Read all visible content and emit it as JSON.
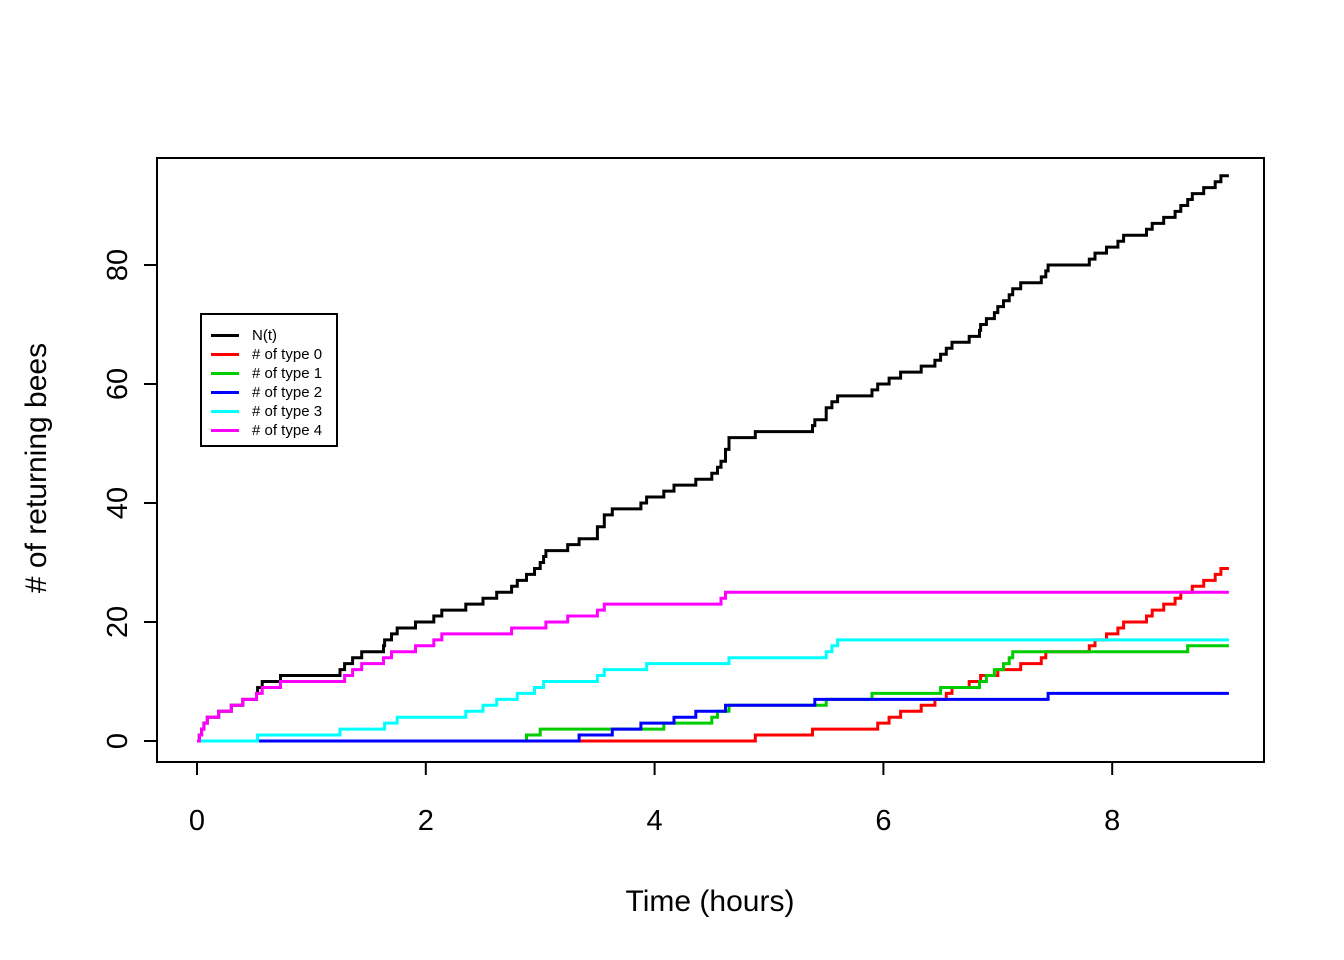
{
  "figure": {
    "xlabel": "Time (hours)",
    "ylabel": "# of returning bees"
  },
  "legend": {
    "items": [
      {
        "label": "N(t)",
        "color": "#000000"
      },
      {
        "label": "# of type 0",
        "color": "#FF0000"
      },
      {
        "label": "# of type 1",
        "color": "#00CD00"
      },
      {
        "label": "# of type 2",
        "color": "#0000FF"
      },
      {
        "label": "# of type 3",
        "color": "#00FFFF"
      },
      {
        "label": "# of type 4",
        "color": "#FF00FF"
      }
    ]
  },
  "chart_data": {
    "type": "line",
    "subtype": "step-counting-process",
    "title": "",
    "xlabel": "Time (hours)",
    "ylabel": "# of returning bees",
    "xlim": [
      -0.36,
      9.36
    ],
    "ylim": [
      -3.8,
      98.8
    ],
    "x_tick_values": [
      0,
      2,
      4,
      6,
      8
    ],
    "x_tick_labels": [
      "0",
      "2",
      "4",
      "6",
      "8"
    ],
    "y_tick_values": [
      0,
      20,
      40,
      60,
      80
    ],
    "y_tick_labels": [
      "0",
      "20",
      "40",
      "60",
      "80"
    ],
    "grid": false,
    "legend_position": "upper-left-inside",
    "t_start": 0,
    "t_end": 9.02,
    "series": [
      {
        "name": "N(t)",
        "color": "#000000",
        "derived": "cumulative_sum_of_all_types",
        "final_count": 95
      },
      {
        "name": "# of type 0",
        "color": "#FF0000",
        "final_count": 29,
        "event_times": [
          4.88,
          5.38,
          5.95,
          6.05,
          6.15,
          6.33,
          6.45,
          6.55,
          6.6,
          6.75,
          6.85,
          7.0,
          7.2,
          7.38,
          7.42,
          7.8,
          7.85,
          7.95,
          8.05,
          8.1,
          8.3,
          8.35,
          8.45,
          8.55,
          8.6,
          8.7,
          8.8,
          8.9,
          8.95
        ]
      },
      {
        "name": "# of type 1",
        "color": "#00CD00",
        "final_count": 16,
        "event_times": [
          2.88,
          3.0,
          4.08,
          4.5,
          4.55,
          4.65,
          5.5,
          5.9,
          6.5,
          6.84,
          6.9,
          6.97,
          7.05,
          7.1,
          7.13,
          8.66
        ]
      },
      {
        "name": "# of type 2",
        "color": "#0000FF",
        "final_count": 8,
        "event_times": [
          3.34,
          3.63,
          3.88,
          4.17,
          4.36,
          4.62,
          5.4,
          7.44
        ]
      },
      {
        "name": "# of type 3",
        "color": "#00FFFF",
        "final_count": 17,
        "event_times": [
          0.53,
          1.25,
          1.64,
          1.75,
          2.35,
          2.5,
          2.62,
          2.8,
          2.95,
          3.03,
          3.5,
          3.56,
          3.93,
          4.65,
          5.5,
          5.55,
          5.6
        ]
      },
      {
        "name": "# of type 4",
        "color": "#FF00FF",
        "final_count": 25,
        "event_times": [
          0.02,
          0.04,
          0.06,
          0.09,
          0.19,
          0.3,
          0.4,
          0.52,
          0.57,
          0.73,
          1.29,
          1.36,
          1.44,
          1.63,
          1.7,
          1.91,
          2.07,
          2.14,
          2.75,
          3.05,
          3.24,
          3.5,
          3.56,
          4.58,
          4.62
        ]
      }
    ]
  }
}
